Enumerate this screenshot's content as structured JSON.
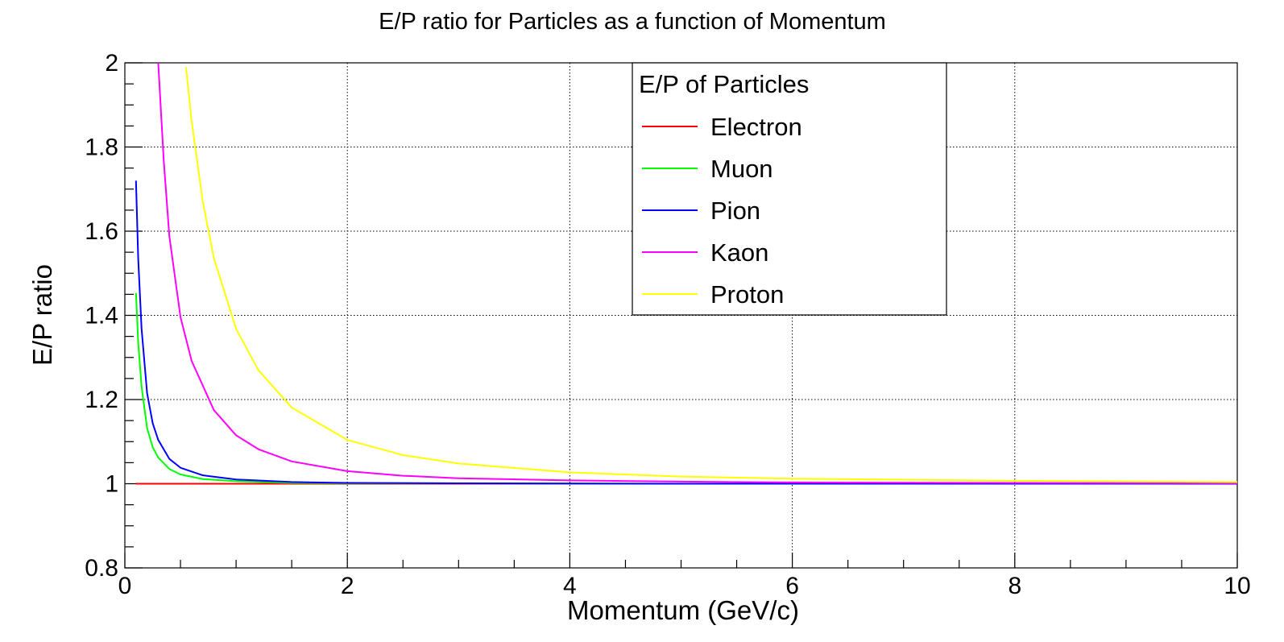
{
  "chart_data": {
    "type": "line",
    "title": "E/P ratio for Particles as a function of Momentum",
    "xlabel": "Momentum (GeV/c)",
    "ylabel": "E/P ratio",
    "xlim": [
      0,
      10
    ],
    "ylim": [
      0.8,
      2
    ],
    "x_ticks": [
      "0",
      "2",
      "4",
      "6",
      "8",
      "10"
    ],
    "y_ticks": [
      "0.8",
      "1",
      "1.2",
      "1.4",
      "1.6",
      "1.8",
      "2"
    ],
    "grid": true,
    "legend": {
      "title": "E/P of Particles",
      "position": "top-center",
      "entries": [
        "Electron",
        "Muon",
        "Pion",
        "Kaon",
        "Proton"
      ]
    },
    "series": [
      {
        "name": "Electron",
        "color": "#ff0000",
        "x": [
          0.1,
          0.2,
          0.5,
          1,
          2,
          4,
          6,
          8,
          10
        ],
        "y": [
          1.0,
          1.0,
          1.0,
          1.0,
          1.0,
          1.0,
          1.0,
          1.0,
          1.0
        ]
      },
      {
        "name": "Muon",
        "color": "#00ff00",
        "x": [
          0.1,
          0.12,
          0.15,
          0.2,
          0.25,
          0.3,
          0.4,
          0.5,
          0.7,
          1,
          1.5,
          2,
          3,
          5,
          10
        ],
        "y": [
          1.453,
          1.336,
          1.231,
          1.132,
          1.087,
          1.062,
          1.035,
          1.022,
          1.011,
          1.006,
          1.002,
          1.001,
          1.001,
          1.0,
          1.0
        ]
      },
      {
        "name": "Pion",
        "color": "#0000ff",
        "x": [
          0.1,
          0.12,
          0.15,
          0.2,
          0.25,
          0.3,
          0.4,
          0.5,
          0.7,
          1,
          1.5,
          2,
          3,
          5,
          10
        ],
        "y": [
          1.72,
          1.535,
          1.369,
          1.215,
          1.144,
          1.104,
          1.059,
          1.038,
          1.02,
          1.01,
          1.004,
          1.002,
          1.001,
          1.0,
          1.0
        ]
      },
      {
        "name": "Kaon",
        "color": "#ff00ff",
        "x": [
          0.3,
          0.35,
          0.4,
          0.5,
          0.6,
          0.8,
          1,
          1.2,
          1.5,
          2,
          2.5,
          3,
          4,
          5,
          6,
          8,
          10
        ],
        "y": [
          2.0,
          1.766,
          1.588,
          1.396,
          1.292,
          1.175,
          1.115,
          1.082,
          1.053,
          1.03,
          1.019,
          1.013,
          1.008,
          1.005,
          1.003,
          1.002,
          1.001
        ]
      },
      {
        "name": "Proton",
        "color": "#ffff00",
        "x": [
          0.55,
          0.6,
          0.7,
          0.8,
          1,
          1.2,
          1.5,
          2,
          2.5,
          3,
          4,
          5,
          6,
          8,
          10
        ],
        "y": [
          1.99,
          1.862,
          1.671,
          1.536,
          1.368,
          1.27,
          1.181,
          1.104,
          1.068,
          1.048,
          1.027,
          1.017,
          1.012,
          1.007,
          1.004
        ]
      }
    ]
  }
}
